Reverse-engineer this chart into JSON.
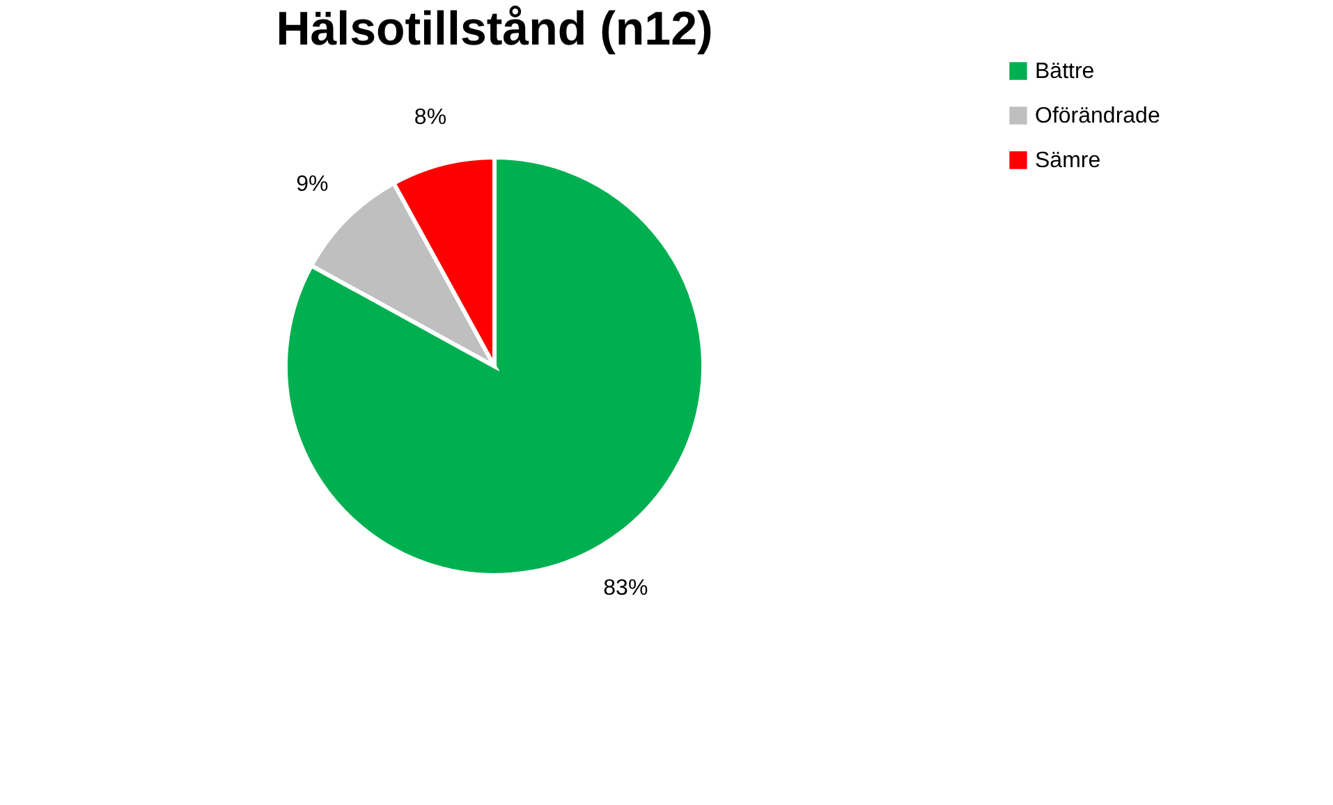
{
  "chart_data": {
    "type": "pie",
    "title": "Hälsotillstånd (n12)",
    "categories": [
      "Bättre",
      "Oförändrade",
      "Sämre"
    ],
    "values": [
      83,
      9,
      8
    ],
    "colors": [
      "#00b050",
      "#bfbfbf",
      "#ff0000"
    ],
    "value_labels": [
      "83%",
      "9%",
      "8%"
    ],
    "legend": "right"
  }
}
